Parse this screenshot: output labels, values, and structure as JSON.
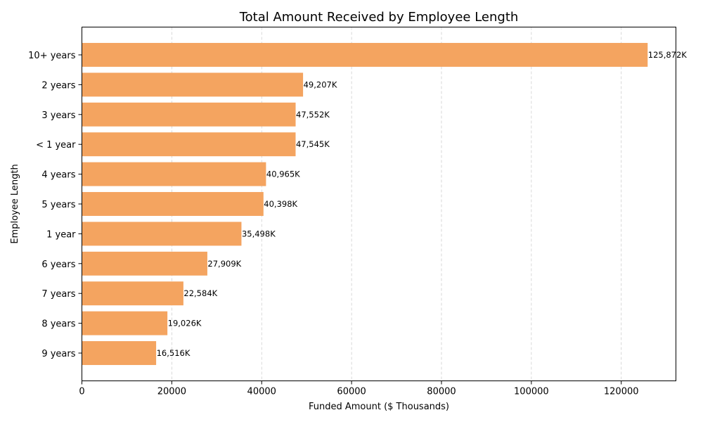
{
  "chart_data": {
    "type": "bar",
    "orientation": "horizontal",
    "title": "Total Amount Received by Employee Length",
    "xlabel": "Funded Amount ($ Thousands)",
    "ylabel": "Employee Length",
    "categories": [
      "10+ years",
      "2 years",
      "3 years",
      "< 1 year",
      "4 years",
      "5 years",
      "1 year",
      "6 years",
      "7 years",
      "8 years",
      "9 years"
    ],
    "values": [
      125872,
      49207,
      47552,
      47545,
      40965,
      40398,
      35498,
      27909,
      22584,
      19026,
      16516
    ],
    "data_labels": [
      "125,872K",
      "49,207K",
      "47,552K",
      "47,545K",
      "40,965K",
      "40,398K",
      "35,498K",
      "27,909K",
      "22,584K",
      "19,026K",
      "16,516K"
    ],
    "xlim": [
      0,
      132165
    ],
    "xticks": [
      0,
      20000,
      40000,
      60000,
      80000,
      100000,
      120000
    ],
    "xtick_labels": [
      "0",
      "20000",
      "40000",
      "60000",
      "80000",
      "100000",
      "120000"
    ],
    "grid": "x-dashed",
    "bar_color": "#f4a460"
  }
}
